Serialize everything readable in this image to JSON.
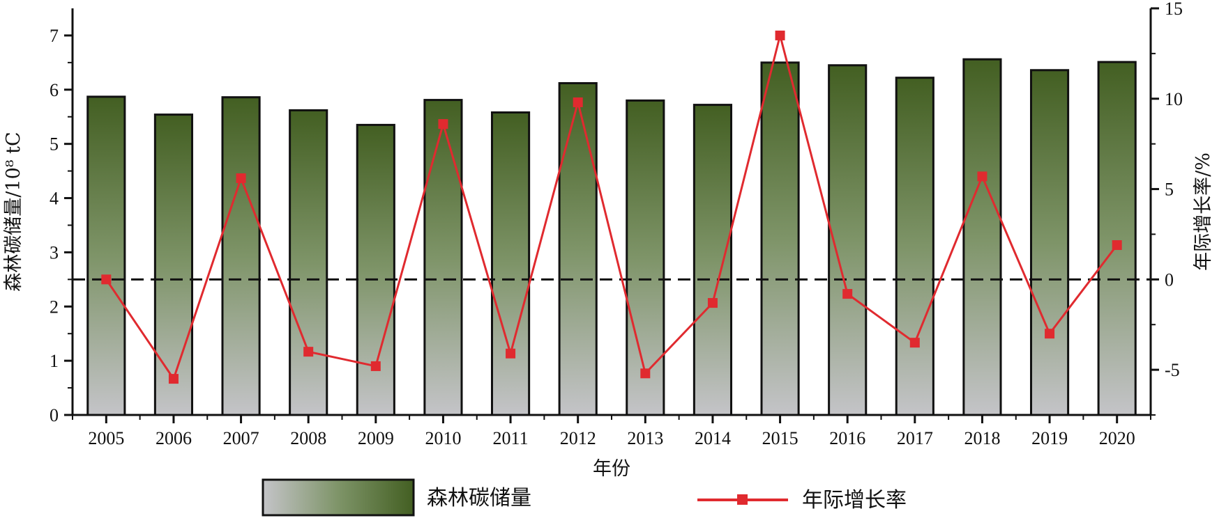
{
  "chart_data": {
    "type": "bar",
    "categories": [
      "2005",
      "2006",
      "2007",
      "2008",
      "2009",
      "2010",
      "2011",
      "2012",
      "2013",
      "2014",
      "2015",
      "2016",
      "2017",
      "2018",
      "2019",
      "2020"
    ],
    "title": "",
    "xlabel": "年份",
    "ylabel": "森林碳储量/10⁸ tC",
    "y2label": "年际增长率/%",
    "ylim": [
      0,
      7.5
    ],
    "y2lim": [
      -7.5,
      15
    ],
    "yticks": [
      0,
      1,
      2,
      3,
      4,
      5,
      6,
      7
    ],
    "y2ticks": [
      -5,
      0,
      5,
      10,
      15
    ],
    "zero_reference_line": 0,
    "series": [
      {
        "name": "森林碳储量",
        "type": "bar",
        "axis": "left",
        "values": [
          5.87,
          5.54,
          5.86,
          5.62,
          5.35,
          5.81,
          5.58,
          6.12,
          5.8,
          5.72,
          6.5,
          6.45,
          6.22,
          6.56,
          6.36,
          6.51
        ]
      },
      {
        "name": "年际增长率",
        "type": "line",
        "axis": "right",
        "values": [
          0.0,
          -5.5,
          5.6,
          -4.0,
          -4.8,
          8.6,
          -4.1,
          9.8,
          -5.2,
          -1.3,
          13.5,
          -0.8,
          -3.5,
          5.7,
          -3.0,
          1.9
        ]
      }
    ],
    "legend": {
      "placement": "bottom"
    },
    "grid": false,
    "colors": {
      "bar_top": "#435f22",
      "bar_mid": "#7e9468",
      "bar_bottom": "#c4c4c8",
      "line": "#e02a2f",
      "axis": "#111111"
    }
  }
}
